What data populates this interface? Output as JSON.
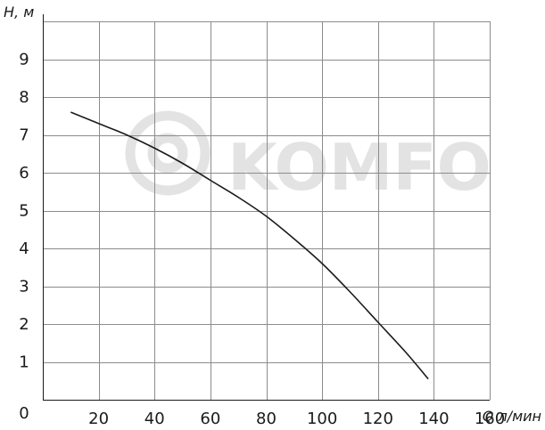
{
  "watermark": {
    "text": "KOMFO"
  },
  "chart_data": {
    "type": "line",
    "xlabel": "Q л/мин",
    "ylabel": "H, м",
    "origin_label": "0",
    "xlim": [
      0,
      160
    ],
    "ylim": [
      0,
      10
    ],
    "x_ticks": [
      20,
      40,
      60,
      80,
      100,
      120,
      140,
      160
    ],
    "y_ticks": [
      1,
      2,
      3,
      4,
      5,
      6,
      7,
      8,
      9
    ],
    "grid": true,
    "series": [
      {
        "x": [
          10,
          20,
          30,
          40,
          50,
          60,
          70,
          80,
          90,
          100,
          110,
          120,
          130,
          138
        ],
        "y": [
          7.6,
          7.3,
          7.0,
          6.65,
          6.25,
          5.8,
          5.35,
          4.85,
          4.25,
          3.6,
          2.85,
          2.05,
          1.25,
          0.55
        ]
      }
    ]
  }
}
